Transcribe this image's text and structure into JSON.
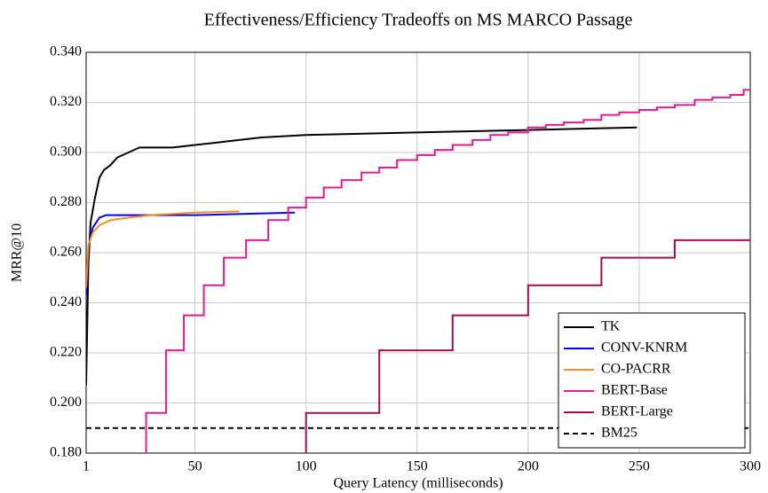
{
  "chart_data": {
    "type": "line",
    "title": "Effectiveness/Efficiency Tradeoffs on MS MARCO Passage",
    "x_label": "Query Latency (milliseconds)",
    "y_label": "MRR@10",
    "xlim": [
      1,
      300
    ],
    "xticks": [
      1,
      50,
      100,
      150,
      200,
      250,
      300
    ],
    "ylim": [
      0.18,
      0.34
    ],
    "yticks": [
      {
        "value": 0.18,
        "label": "0.180"
      },
      {
        "value": 0.2,
        "label": "0.200"
      },
      {
        "value": 0.22,
        "label": "0.220"
      },
      {
        "value": 0.24,
        "label": "0.240"
      },
      {
        "value": 0.26,
        "label": "0.260"
      },
      {
        "value": 0.28,
        "label": "0.280"
      },
      {
        "value": 0.3,
        "label": "0.300"
      },
      {
        "value": 0.32,
        "label": "0.320"
      },
      {
        "value": 0.34,
        "label": "0.340"
      }
    ],
    "grid": true,
    "legend": "lower right",
    "series": [
      {
        "name": "TK",
        "color": "#000000",
        "x": [
          1,
          2,
          3,
          5,
          7,
          9,
          12,
          15,
          20,
          25,
          40,
          50,
          60,
          70,
          80,
          100,
          150,
          200,
          249
        ],
        "values": [
          0.207,
          0.255,
          0.272,
          0.282,
          0.29,
          0.293,
          0.295,
          0.298,
          0.3,
          0.302,
          0.302,
          0.303,
          0.304,
          0.305,
          0.306,
          0.307,
          0.308,
          0.309,
          0.31
        ]
      },
      {
        "name": "CONV-KNRM",
        "color": "#0000ff",
        "x": [
          1,
          2,
          4,
          7,
          10,
          50,
          95
        ],
        "values": [
          0.243,
          0.262,
          0.27,
          0.274,
          0.275,
          0.275,
          0.276
        ]
      },
      {
        "name": "CO-PACRR",
        "color": "#ff8c1a",
        "x": [
          1,
          2,
          4,
          7,
          12,
          20,
          30,
          50,
          70
        ],
        "values": [
          0.246,
          0.263,
          0.268,
          0.271,
          0.273,
          0.274,
          0.275,
          0.276,
          0.2765
        ]
      },
      {
        "name": "BERT-Base",
        "color": "#e6189c",
        "step": true,
        "x": [
          28,
          28,
          37,
          45,
          54,
          63,
          73,
          83,
          92,
          100,
          108,
          116,
          125,
          133,
          141,
          150,
          158,
          166,
          175,
          183,
          191,
          200,
          208,
          216,
          225,
          233,
          241,
          250,
          258,
          266,
          275,
          283,
          291,
          297,
          300
        ],
        "values": [
          0.18,
          0.196,
          0.221,
          0.235,
          0.247,
          0.258,
          0.265,
          0.273,
          0.278,
          0.282,
          0.286,
          0.289,
          0.292,
          0.294,
          0.297,
          0.299,
          0.301,
          0.303,
          0.305,
          0.307,
          0.308,
          0.31,
          0.311,
          0.312,
          0.313,
          0.315,
          0.316,
          0.317,
          0.318,
          0.319,
          0.321,
          0.322,
          0.323,
          0.325,
          0.325
        ]
      },
      {
        "name": "BERT-Large",
        "color": "#a0104f",
        "step": true,
        "x": [
          100,
          100,
          133,
          166,
          200,
          233,
          266,
          300
        ],
        "values": [
          0.18,
          0.196,
          0.221,
          0.235,
          0.247,
          0.258,
          0.265,
          0.265
        ]
      },
      {
        "name": "BM25",
        "color": "#000000",
        "dashed": true,
        "x": [
          1,
          300
        ],
        "values": [
          0.19,
          0.19
        ]
      }
    ]
  }
}
